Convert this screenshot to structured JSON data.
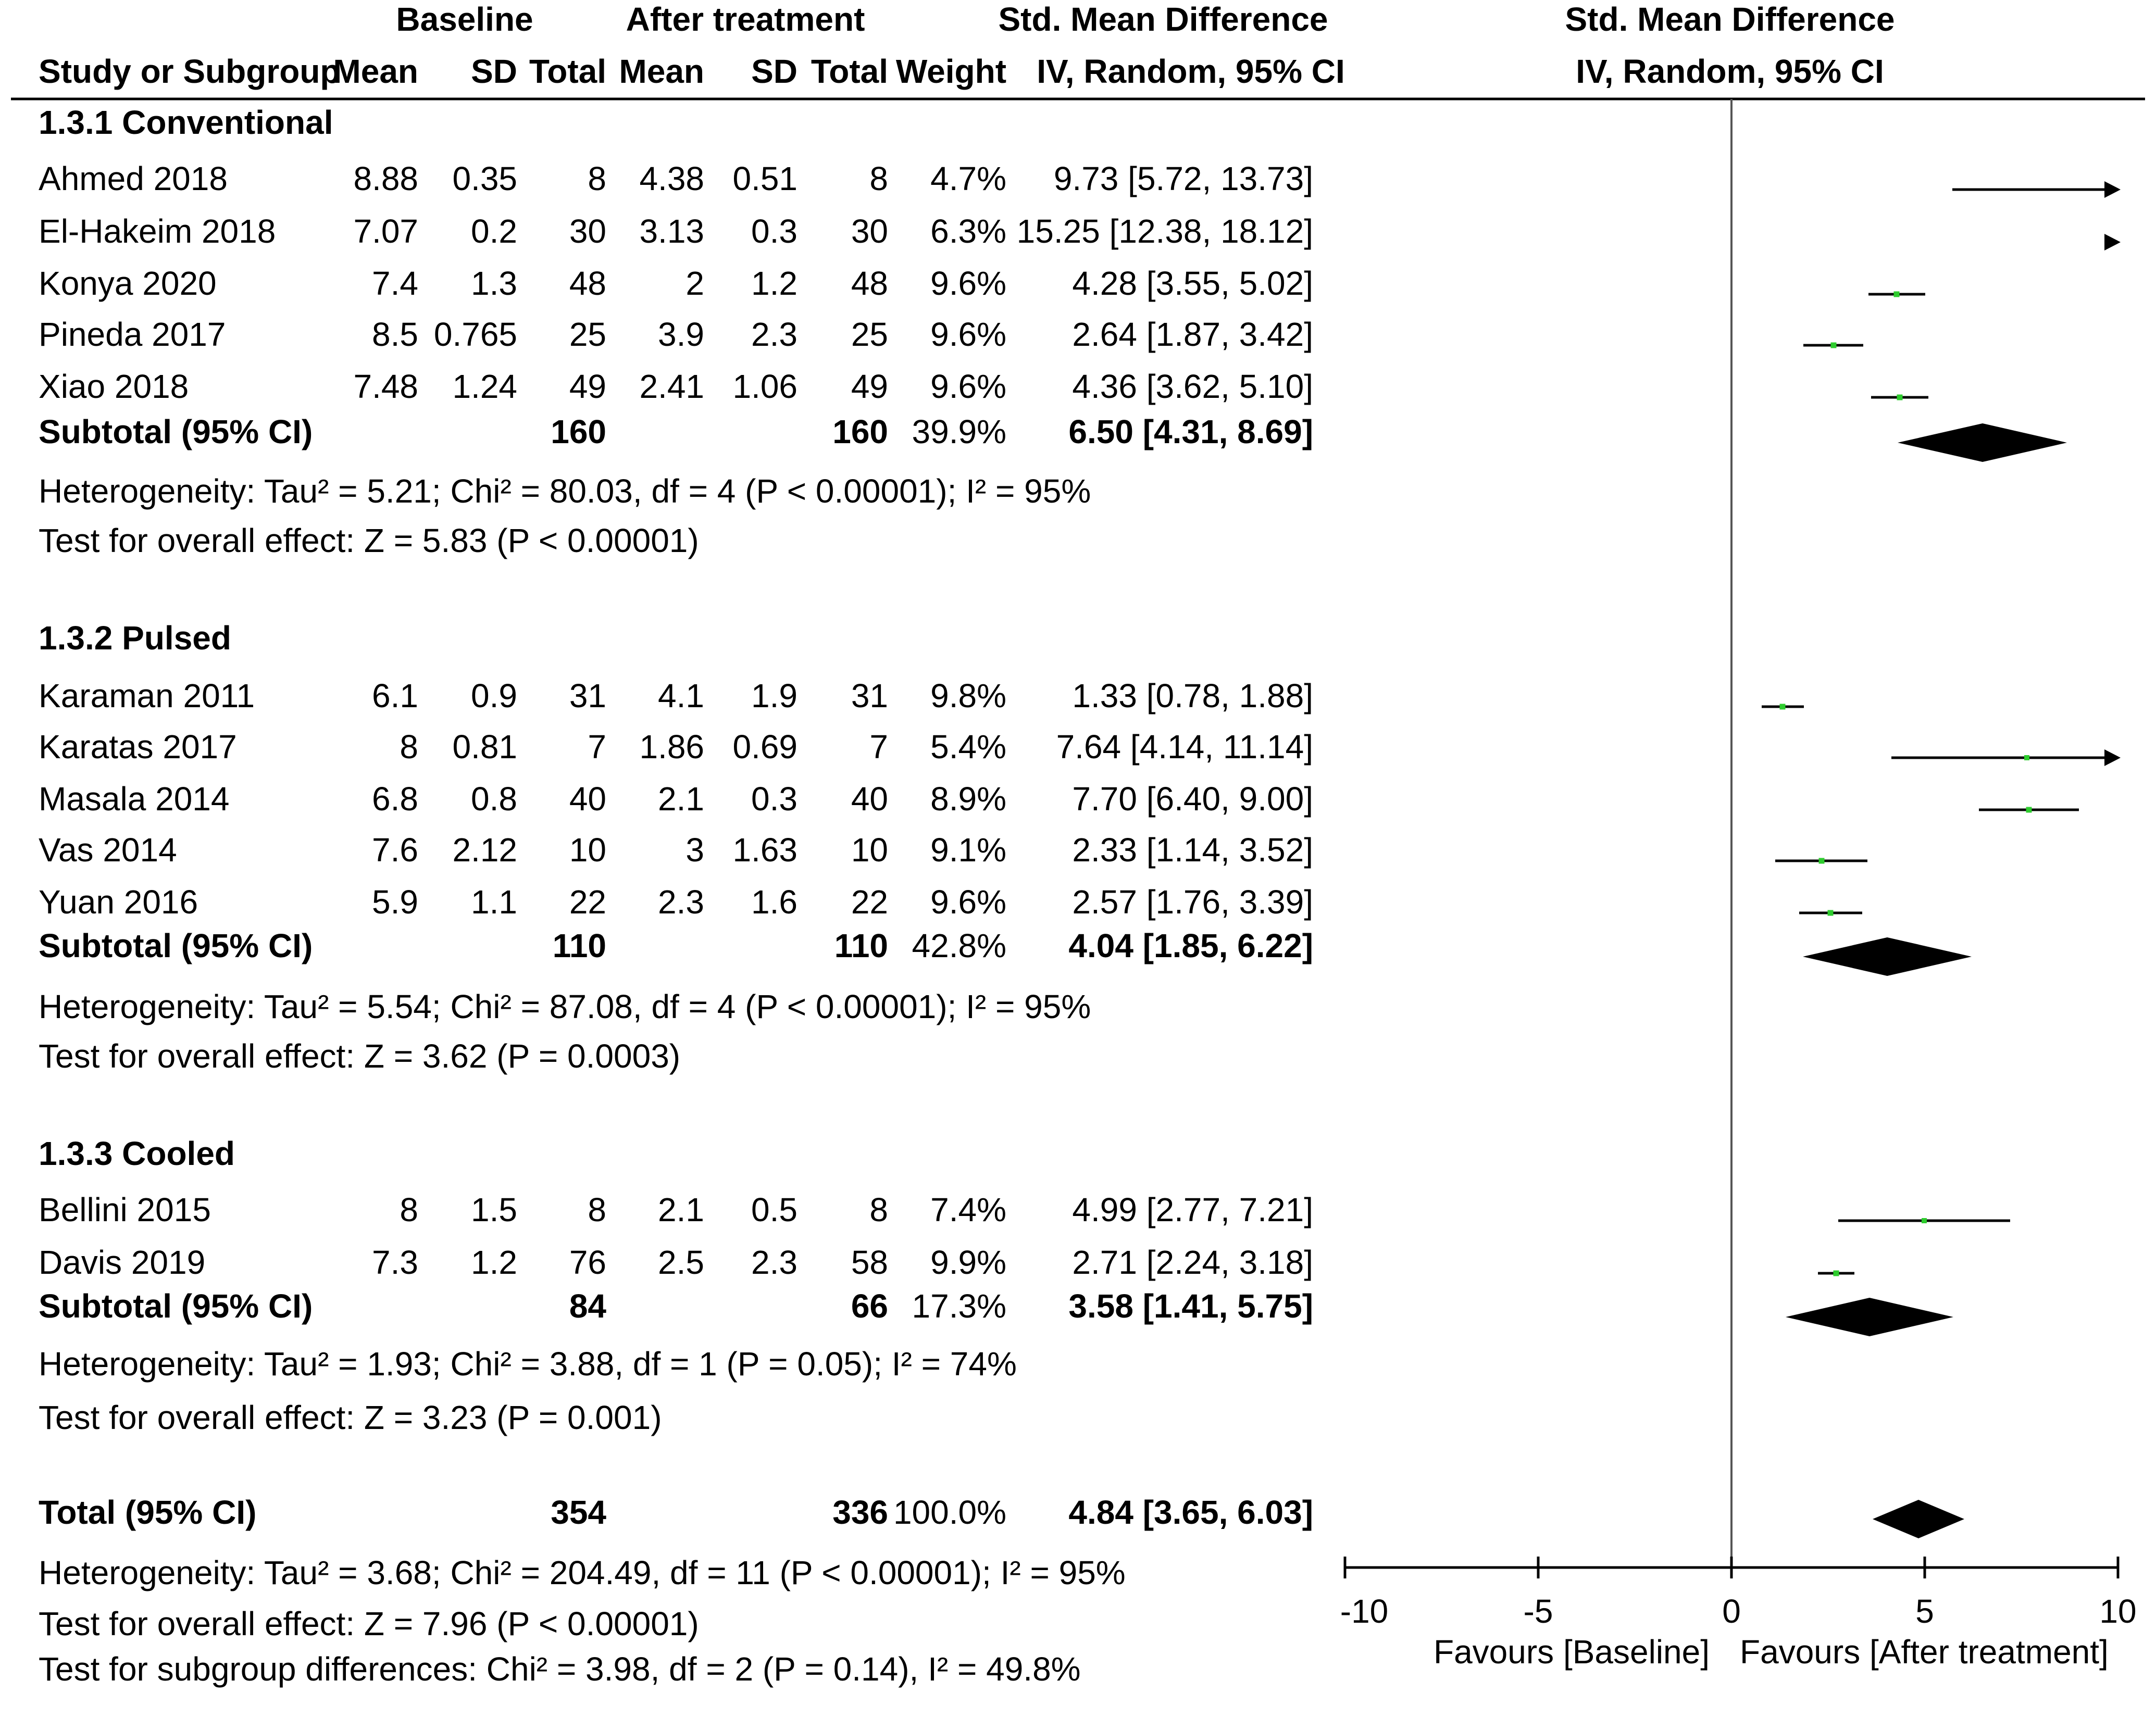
{
  "header": {
    "group1": "Baseline",
    "group2": "After treatment",
    "effect_title": "Std. Mean Difference",
    "plot_title": "Std. Mean Difference",
    "method": "IV, Random, 95% CI",
    "plot_method": "IV, Random, 95% CI",
    "columns": {
      "study": "Study or Subgroup",
      "mean1": "Mean",
      "sd1": "SD",
      "total1": "Total",
      "mean2": "Mean",
      "sd2": "SD",
      "total2": "Total",
      "weight": "Weight"
    }
  },
  "subgroups": [
    {
      "name": "1.3.1 Conventional",
      "studies": [
        {
          "study": "Ahmed 2018",
          "mean1": "8.88",
          "sd1": "0.35",
          "total1": "8",
          "mean2": "4.38",
          "sd2": "0.51",
          "total2": "8",
          "weight": "4.7%",
          "ci_text": "9.73 [5.72, 13.73]"
        },
        {
          "study": "El-Hakeim 2018",
          "mean1": "7.07",
          "sd1": "0.2",
          "total1": "30",
          "mean2": "3.13",
          "sd2": "0.3",
          "total2": "30",
          "weight": "6.3%",
          "ci_text": "15.25 [12.38, 18.12]"
        },
        {
          "study": "Konya 2020",
          "mean1": "7.4",
          "sd1": "1.3",
          "total1": "48",
          "mean2": "2",
          "sd2": "1.2",
          "total2": "48",
          "weight": "9.6%",
          "ci_text": "4.28 [3.55, 5.02]"
        },
        {
          "study": "Pineda 2017",
          "mean1": "8.5",
          "sd1": "0.765",
          "total1": "25",
          "mean2": "3.9",
          "sd2": "2.3",
          "total2": "25",
          "weight": "9.6%",
          "ci_text": "2.64 [1.87, 3.42]"
        },
        {
          "study": "Xiao 2018",
          "mean1": "7.48",
          "sd1": "1.24",
          "total1": "49",
          "mean2": "2.41",
          "sd2": "1.06",
          "total2": "49",
          "weight": "9.6%",
          "ci_text": "4.36 [3.62, 5.10]"
        }
      ],
      "subtotal": {
        "label": "Subtotal (95% CI)",
        "total1": "160",
        "total2": "160",
        "weight": "39.9%",
        "ci_text": "6.50 [4.31, 8.69]"
      },
      "heterogeneity": "Heterogeneity: Tau² = 5.21; Chi² = 80.03, df = 4 (P < 0.00001); I² = 95%",
      "overall": "Test for overall effect: Z = 5.83 (P < 0.00001)"
    },
    {
      "name": "1.3.2 Pulsed",
      "studies": [
        {
          "study": "Karaman 2011",
          "mean1": "6.1",
          "sd1": "0.9",
          "total1": "31",
          "mean2": "4.1",
          "sd2": "1.9",
          "total2": "31",
          "weight": "9.8%",
          "ci_text": "1.33 [0.78, 1.88]"
        },
        {
          "study": "Karatas 2017",
          "mean1": "8",
          "sd1": "0.81",
          "total1": "7",
          "mean2": "1.86",
          "sd2": "0.69",
          "total2": "7",
          "weight": "5.4%",
          "ci_text": "7.64 [4.14, 11.14]"
        },
        {
          "study": "Masala 2014",
          "mean1": "6.8",
          "sd1": "0.8",
          "total1": "40",
          "mean2": "2.1",
          "sd2": "0.3",
          "total2": "40",
          "weight": "8.9%",
          "ci_text": "7.70 [6.40, 9.00]"
        },
        {
          "study": "Vas 2014",
          "mean1": "7.6",
          "sd1": "2.12",
          "total1": "10",
          "mean2": "3",
          "sd2": "1.63",
          "total2": "10",
          "weight": "9.1%",
          "ci_text": "2.33 [1.14, 3.52]"
        },
        {
          "study": "Yuan 2016",
          "mean1": "5.9",
          "sd1": "1.1",
          "total1": "22",
          "mean2": "2.3",
          "sd2": "1.6",
          "total2": "22",
          "weight": "9.6%",
          "ci_text": "2.57 [1.76, 3.39]"
        }
      ],
      "subtotal": {
        "label": "Subtotal (95% CI)",
        "total1": "110",
        "total2": "110",
        "weight": "42.8%",
        "ci_text": "4.04 [1.85, 6.22]"
      },
      "heterogeneity": "Heterogeneity: Tau² = 5.54; Chi² = 87.08, df = 4 (P < 0.00001); I² = 95%",
      "overall": "Test for overall effect: Z = 3.62 (P = 0.0003)"
    },
    {
      "name": "1.3.3 Cooled",
      "studies": [
        {
          "study": "Bellini 2015",
          "mean1": "8",
          "sd1": "1.5",
          "total1": "8",
          "mean2": "2.1",
          "sd2": "0.5",
          "total2": "8",
          "weight": "7.4%",
          "ci_text": "4.99 [2.77, 7.21]"
        },
        {
          "study": "Davis 2019",
          "mean1": "7.3",
          "sd1": "1.2",
          "total1": "76",
          "mean2": "2.5",
          "sd2": "2.3",
          "total2": "58",
          "weight": "9.9%",
          "ci_text": "2.71 [2.24, 3.18]"
        }
      ],
      "subtotal": {
        "label": "Subtotal (95% CI)",
        "total1": "84",
        "total2": "66",
        "weight": "17.3%",
        "ci_text": "3.58 [1.41, 5.75]"
      },
      "heterogeneity": "Heterogeneity: Tau² = 1.93; Chi² = 3.88, df = 1 (P = 0.05); I² = 74%",
      "overall": "Test for overall effect: Z = 3.23 (P = 0.001)"
    }
  ],
  "total": {
    "label": "Total (95% CI)",
    "total1": "354",
    "total2": "336",
    "weight": "100.0%",
    "ci_text": "4.84 [3.65, 6.03]",
    "heterogeneity": "Heterogeneity: Tau² = 3.68; Chi² = 204.49, df = 11 (P < 0.00001); I² = 95%",
    "overall": "Test for overall effect: Z = 7.96 (P < 0.00001)",
    "subgroup_diff": "Test for subgroup differences: Chi² = 3.98, df = 2 (P = 0.14), I² = 49.8%"
  },
  "axis": {
    "favours_left": "Favours [Baseline]",
    "favours_right": "Favours [After treatment]"
  },
  "colors": {
    "marker": "#2ecc2e",
    "line": "#000000",
    "diamond": "#000000"
  },
  "chart_data": {
    "type": "forest",
    "title": "Std. Mean Difference",
    "xlabel": "IV, Random, 95% CI",
    "xlim": [
      -10,
      10
    ],
    "xticks": [
      -10,
      -5,
      0,
      5,
      10
    ],
    "reference_line": 0,
    "studies": [
      {
        "name": "Ahmed 2018",
        "subgroup": "1.3.1 Conventional",
        "est": 9.73,
        "lo": 5.72,
        "hi": 13.73,
        "weight": 4.7
      },
      {
        "name": "El-Hakeim 2018",
        "subgroup": "1.3.1 Conventional",
        "est": 15.25,
        "lo": 12.38,
        "hi": 18.12,
        "weight": 6.3
      },
      {
        "name": "Konya 2020",
        "subgroup": "1.3.1 Conventional",
        "est": 4.28,
        "lo": 3.55,
        "hi": 5.02,
        "weight": 9.6
      },
      {
        "name": "Pineda 2017",
        "subgroup": "1.3.1 Conventional",
        "est": 2.64,
        "lo": 1.87,
        "hi": 3.42,
        "weight": 9.6
      },
      {
        "name": "Xiao 2018",
        "subgroup": "1.3.1 Conventional",
        "est": 4.36,
        "lo": 3.62,
        "hi": 5.1,
        "weight": 9.6
      },
      {
        "name": "Karaman 2011",
        "subgroup": "1.3.2 Pulsed",
        "est": 1.33,
        "lo": 0.78,
        "hi": 1.88,
        "weight": 9.8
      },
      {
        "name": "Karatas 2017",
        "subgroup": "1.3.2 Pulsed",
        "est": 7.64,
        "lo": 4.14,
        "hi": 11.14,
        "weight": 5.4
      },
      {
        "name": "Masala 2014",
        "subgroup": "1.3.2 Pulsed",
        "est": 7.7,
        "lo": 6.4,
        "hi": 9.0,
        "weight": 8.9
      },
      {
        "name": "Vas 2014",
        "subgroup": "1.3.2 Pulsed",
        "est": 2.33,
        "lo": 1.14,
        "hi": 3.52,
        "weight": 9.1
      },
      {
        "name": "Yuan 2016",
        "subgroup": "1.3.2 Pulsed",
        "est": 2.57,
        "lo": 1.76,
        "hi": 3.39,
        "weight": 9.6
      },
      {
        "name": "Bellini 2015",
        "subgroup": "1.3.3 Cooled",
        "est": 4.99,
        "lo": 2.77,
        "hi": 7.21,
        "weight": 7.4
      },
      {
        "name": "Davis 2019",
        "subgroup": "1.3.3 Cooled",
        "est": 2.71,
        "lo": 2.24,
        "hi": 3.18,
        "weight": 9.9
      }
    ],
    "subtotals": [
      {
        "name": "Subtotal 1.3.1 Conventional",
        "est": 6.5,
        "lo": 4.31,
        "hi": 8.69
      },
      {
        "name": "Subtotal 1.3.2 Pulsed",
        "est": 4.04,
        "lo": 1.85,
        "hi": 6.22
      },
      {
        "name": "Subtotal 1.3.3 Cooled",
        "est": 3.58,
        "lo": 1.41,
        "hi": 5.75
      }
    ],
    "overall": {
      "name": "Total",
      "est": 4.84,
      "lo": 3.65,
      "hi": 6.03
    }
  }
}
